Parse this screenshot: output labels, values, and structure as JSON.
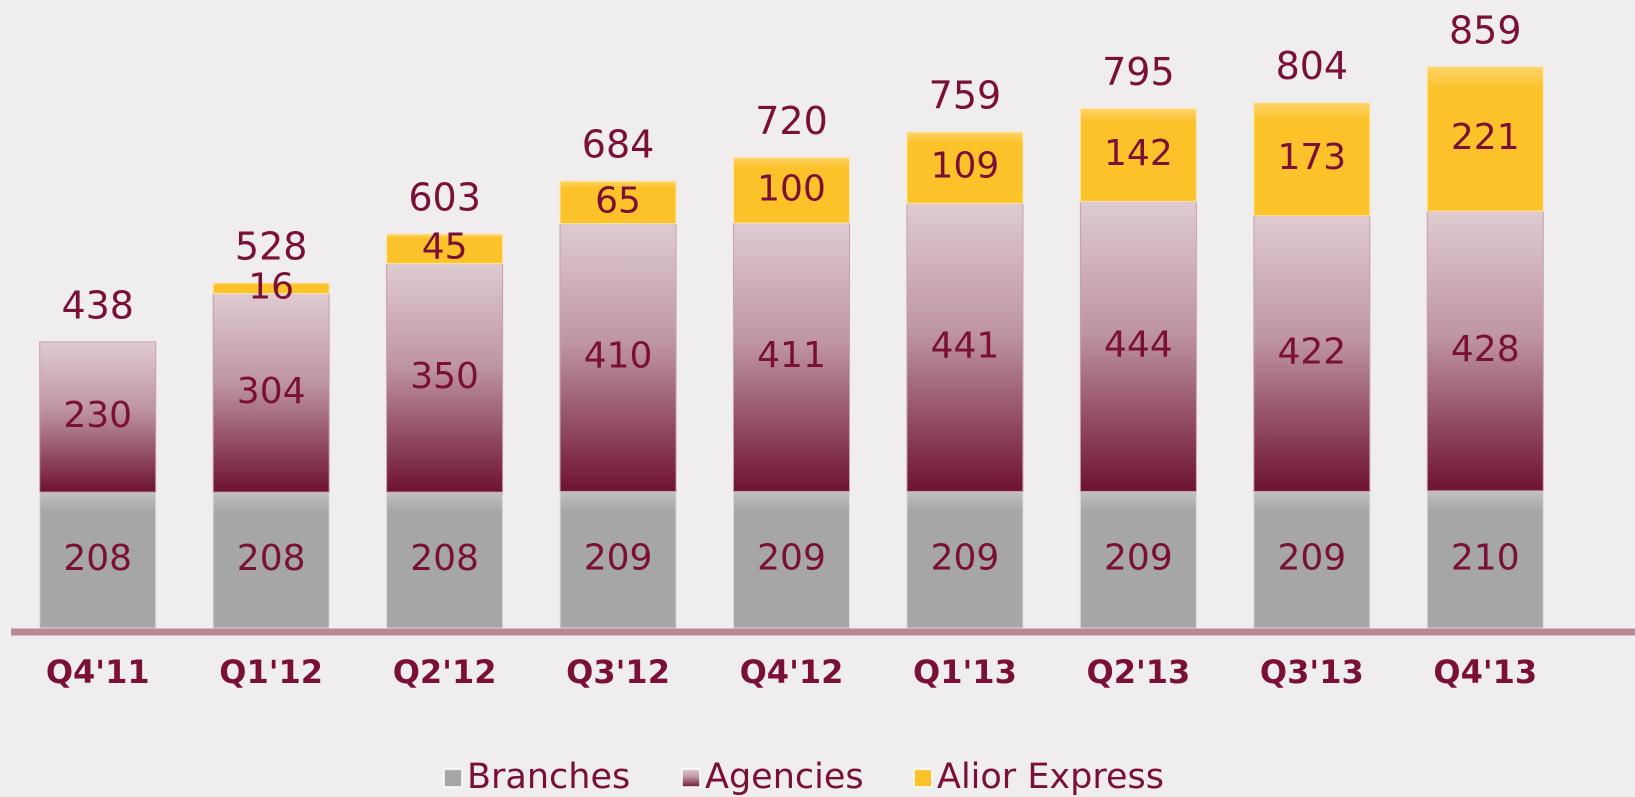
{
  "chart_data": {
    "type": "stacked_bar",
    "categories": [
      "Q4'11",
      "Q1'12",
      "Q2'12",
      "Q3'12",
      "Q4'12",
      "Q1'13",
      "Q2'13",
      "Q3'13",
      "Q4'13"
    ],
    "series": [
      {
        "name": "Branches",
        "color": "#a6a6a6",
        "values": [
          208,
          208,
          208,
          209,
          209,
          209,
          209,
          209,
          210
        ]
      },
      {
        "name": "Agencies",
        "color": "#6e1232",
        "values": [
          230,
          304,
          350,
          410,
          411,
          441,
          444,
          422,
          428
        ]
      },
      {
        "name": "Alior Express",
        "color": "#fcc22a",
        "values": [
          null,
          16,
          45,
          65,
          100,
          109,
          142,
          173,
          221
        ]
      }
    ],
    "totals": [
      438,
      528,
      603,
      684,
      720,
      759,
      795,
      804,
      859
    ],
    "ylim": [
      0,
      900
    ]
  }
}
